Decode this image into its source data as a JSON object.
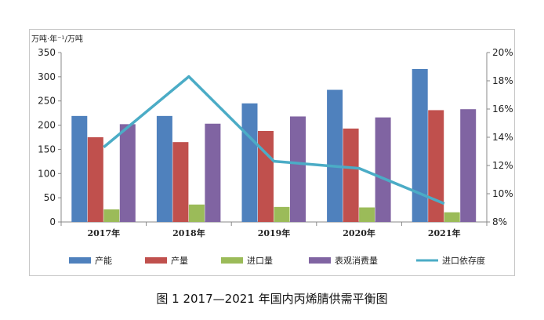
{
  "figure": {
    "caption": "图 1  2017—2021 年国内丙烯腈供需平衡图"
  },
  "chart_data": {
    "type": "bar",
    "title": "",
    "y_left_unit": "万吨·年⁻¹/万吨",
    "categories": [
      "2017年",
      "2018年",
      "2019年",
      "2020年",
      "2021年"
    ],
    "ylim_left": [
      0,
      350
    ],
    "yticks_left": [
      "0",
      "50",
      "100",
      "150",
      "200",
      "250",
      "300",
      "350"
    ],
    "ylim_right": [
      8,
      20
    ],
    "yticks_right": [
      "8%",
      "10%",
      "12%",
      "14%",
      "16%",
      "18%",
      "20%"
    ],
    "grid": false,
    "legend_position": "bottom",
    "series": [
      {
        "name": "产能",
        "kind": "bar",
        "axis": "left",
        "color": "#4f81bd",
        "values": [
          219,
          219,
          245,
          273,
          316
        ]
      },
      {
        "name": "产量",
        "kind": "bar",
        "axis": "left",
        "color": "#c0504d",
        "values": [
          175,
          165,
          188,
          193,
          231
        ]
      },
      {
        "name": "进口量",
        "kind": "bar",
        "axis": "left",
        "color": "#9bbb59",
        "values": [
          26,
          36,
          31,
          30,
          20
        ]
      },
      {
        "name": "表观消费量",
        "kind": "bar",
        "axis": "left",
        "color": "#8064a2",
        "values": [
          202,
          203,
          218,
          216,
          233
        ]
      },
      {
        "name": "进口依存度",
        "kind": "line",
        "axis": "right",
        "color": "#4bacc6",
        "values": [
          13.3,
          18.3,
          12.3,
          11.8,
          9.3
        ]
      }
    ]
  }
}
